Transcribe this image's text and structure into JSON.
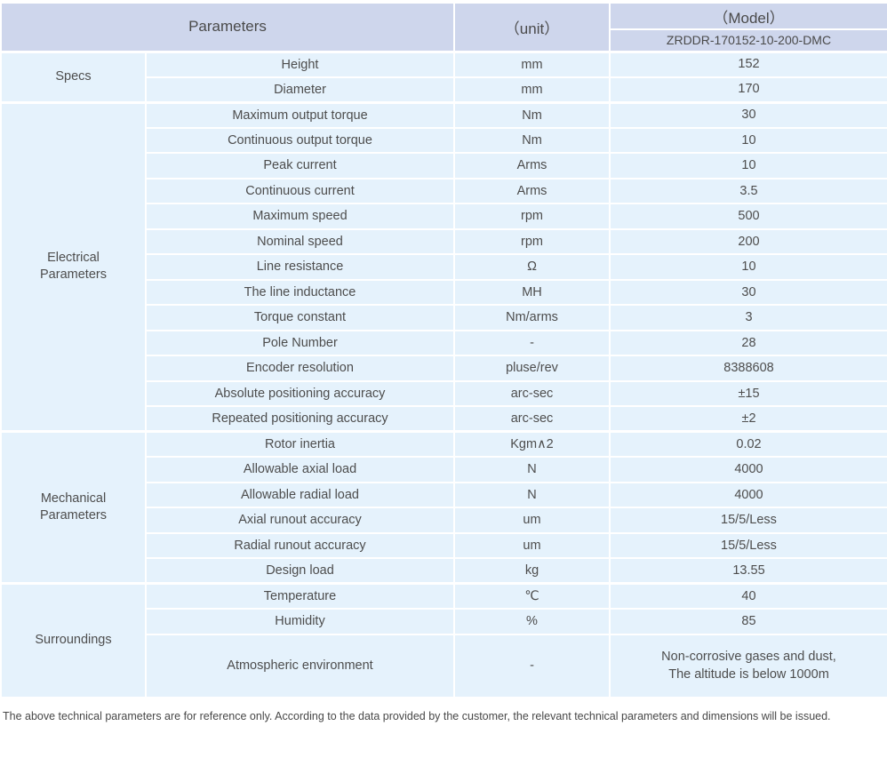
{
  "colors": {
    "header_bg": "#ced6ec",
    "row_bg": "#e5f2fc",
    "text": "#4d4d4d",
    "separator": "#ffffff"
  },
  "table": {
    "header": {
      "parameters": "Parameters",
      "unit": "（unit）",
      "model": "（Model）",
      "model_number": "ZRDDR-170152-10-200-DMC"
    },
    "sections": [
      {
        "label": "Specs",
        "rows": [
          {
            "param": "Height",
            "unit": "mm",
            "value": "152"
          },
          {
            "param": "Diameter",
            "unit": "mm",
            "value": "170"
          }
        ]
      },
      {
        "label": "Electrical\nParameters",
        "rows": [
          {
            "param": "Maximum output torque",
            "unit": "Nm",
            "value": "30"
          },
          {
            "param": "Continuous output torque",
            "unit": "Nm",
            "value": "10"
          },
          {
            "param": "Peak current",
            "unit": "Arms",
            "value": "10"
          },
          {
            "param": "Continuous current",
            "unit": "Arms",
            "value": "3.5"
          },
          {
            "param": "Maximum speed",
            "unit": "rpm",
            "value": "500"
          },
          {
            "param": "Nominal speed",
            "unit": "rpm",
            "value": "200"
          },
          {
            "param": "Line resistance",
            "unit": "Ω",
            "value": "10"
          },
          {
            "param": "The line inductance",
            "unit": "MH",
            "value": "30"
          },
          {
            "param": "Torque constant",
            "unit": "Nm/arms",
            "value": "3"
          },
          {
            "param": "Pole Number",
            "unit": "-",
            "value": "28"
          },
          {
            "param": "Encoder resolution",
            "unit": "pluse/rev",
            "value": "8388608"
          },
          {
            "param": "Absolute positioning accuracy",
            "unit": "arc-sec",
            "value": "±15"
          },
          {
            "param": "Repeated positioning accuracy",
            "unit": "arc-sec",
            "value": "±2"
          }
        ]
      },
      {
        "label": "Mechanical\nParameters",
        "rows": [
          {
            "param": "Rotor inertia",
            "unit": "Kgm∧2",
            "value": "0.02"
          },
          {
            "param": "Allowable axial load",
            "unit": "N",
            "value": "4000"
          },
          {
            "param": "Allowable radial load",
            "unit": "N",
            "value": "4000"
          },
          {
            "param": "Axial runout accuracy",
            "unit": "um",
            "value": "15/5/Less"
          },
          {
            "param": "Radial runout accuracy",
            "unit": "um",
            "value": "15/5/Less"
          },
          {
            "param": "Design load",
            "unit": "kg",
            "value": "13.55"
          }
        ]
      },
      {
        "label": "Surroundings",
        "rows": [
          {
            "param": "Temperature",
            "unit": "℃",
            "value": "40"
          },
          {
            "param": "Humidity",
            "unit": "%",
            "value": "85"
          },
          {
            "param": "Atmospheric environment",
            "unit": "-",
            "value": "Non-corrosive gases and dust,\nThe altitude is below 1000m"
          }
        ]
      }
    ]
  },
  "footer": {
    "note": "The above technical parameters are for reference only. According to the data provided by the customer, the relevant technical parameters and dimensions will be issued."
  }
}
